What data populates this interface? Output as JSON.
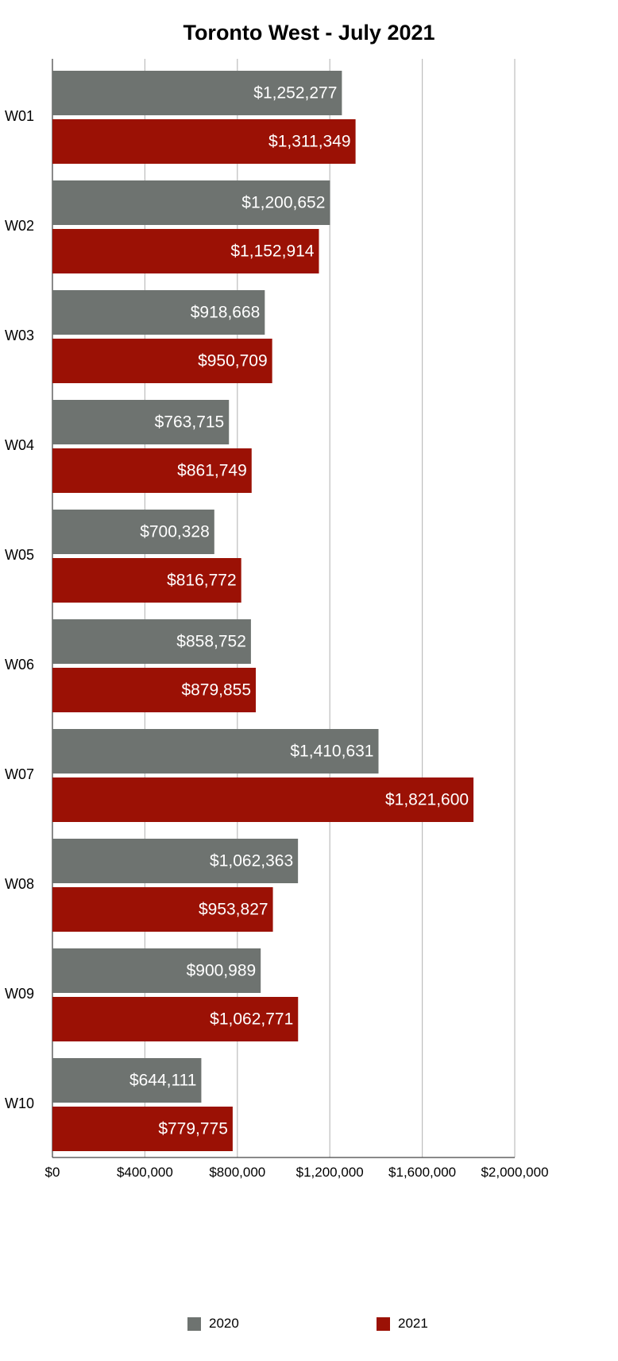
{
  "chart_data": {
    "type": "bar",
    "orientation": "horizontal",
    "title": "Toronto West - July 2021",
    "categories": [
      "W01",
      "W02",
      "W03",
      "W04",
      "W05",
      "W06",
      "W07",
      "W08",
      "W09",
      "W10"
    ],
    "series": [
      {
        "name": "2020",
        "color": "#6e7370",
        "values": [
          1252277,
          1200652,
          918668,
          763715,
          700328,
          858752,
          1410631,
          1062363,
          900989,
          644111
        ],
        "labels": [
          "$1,252,277",
          "$1,200,652",
          "$918,668",
          "$763,715",
          "$700,328",
          "$858,752",
          "$1,410,631",
          "$1,062,363",
          "$900,989",
          "$644,111"
        ]
      },
      {
        "name": "2021",
        "color": "#9b1105",
        "values": [
          1311349,
          1152914,
          950709,
          861749,
          816772,
          879855,
          1821600,
          953827,
          1062771,
          779775
        ],
        "labels": [
          "$1,311,349",
          "$1,152,914",
          "$950,709",
          "$861,749",
          "$816,772",
          "$879,855",
          "$1,821,600",
          "$953,827",
          "$1,062,771",
          "$779,775"
        ]
      }
    ],
    "xlim": [
      0,
      2000000
    ],
    "xticks": [
      0,
      400000,
      800000,
      1200000,
      1600000,
      2000000
    ],
    "xtick_labels": [
      "$0",
      "$400,000",
      "$800,000",
      "$1,200,000",
      "$1,600,000",
      "$2,000,000"
    ],
    "grid": true,
    "legend_position": "bottom"
  }
}
